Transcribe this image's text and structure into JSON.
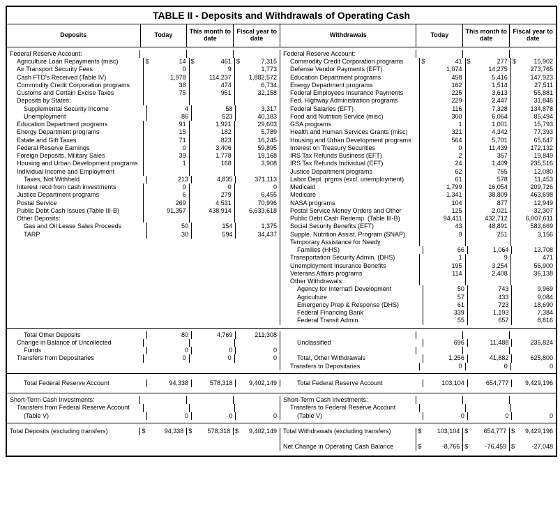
{
  "title": "TABLE II - Deposits and Withdrawals of Operating Cash",
  "cols": {
    "deposits": "Deposits",
    "withdrawals": "Withdrawals",
    "today": "Today",
    "month": "This month to date",
    "fiscal": "Fiscal year to date"
  },
  "widths": {
    "label": 196,
    "num": 65,
    "labelR": 200,
    "numR": 65
  },
  "deposits": [
    {
      "l": "Federal Reserve Account:",
      "i": 0
    },
    {
      "l": "Agriculture Loan Repayments (misc)",
      "i": 1,
      "t": "14",
      "tS": "$",
      "m": "461",
      "mS": "$",
      "f": "7,315",
      "fS": "$"
    },
    {
      "l": "Air Transport Security Fees",
      "i": 1,
      "t": "0",
      "m": "9",
      "f": "1,773"
    },
    {
      "l": "Cash FTD's Received (Table IV)",
      "i": 1,
      "t": "1,978",
      "m": "114,237",
      "f": "1,882,572"
    },
    {
      "l": "Commodity Credit Corporation programs",
      "i": 1,
      "t": "38",
      "m": "474",
      "f": "6,734"
    },
    {
      "l": "Customs and Certain Excise Taxes",
      "i": 1,
      "t": "75",
      "m": "951",
      "f": "32,158"
    },
    {
      "l": "Deposits by States:",
      "i": 1
    },
    {
      "l": "Supplemental Security Income",
      "i": 2,
      "t": "4",
      "m": "58",
      "f": "3,317"
    },
    {
      "l": "Unemployment",
      "i": 2,
      "t": "86",
      "m": "523",
      "f": "40,183"
    },
    {
      "l": "Education Department programs",
      "i": 1,
      "t": "91",
      "m": "1,921",
      "f": "29,603"
    },
    {
      "l": "Energy Department programs",
      "i": 1,
      "t": "15",
      "m": "182",
      "f": "5,789"
    },
    {
      "l": "Estate and Gift Taxes",
      "i": 1,
      "t": "71",
      "m": "823",
      "f": "16,245"
    },
    {
      "l": "Federal Reserve Earnings",
      "i": 1,
      "t": "0",
      "m": "3,406",
      "f": "59,895"
    },
    {
      "l": "Foreign Deposits, Military Sales",
      "i": 1,
      "t": "39",
      "m": "1,778",
      "f": "19,168"
    },
    {
      "l": "Housing and Urban Development programs",
      "i": 1,
      "t": "1",
      "m": "168",
      "f": "3,908"
    },
    {
      "l": "Individual Income and Employment",
      "i": 1
    },
    {
      "l": "Taxes, Not Withheld",
      "i": 2,
      "t": "213",
      "m": "4,835",
      "f": "371,113"
    },
    {
      "l": "Interest recd from cash investments",
      "i": 1,
      "t": "0",
      "m": "0",
      "f": "0"
    },
    {
      "l": "Justice Department programs",
      "i": 1,
      "t": "6",
      "m": "279",
      "f": "6,455"
    },
    {
      "l": "Postal Service",
      "i": 1,
      "t": "269",
      "m": "4,531",
      "f": "70,996"
    },
    {
      "l": "Public Debt Cash Issues (Table III-B)",
      "i": 1,
      "t": "91,357",
      "m": "438,914",
      "f": "6,633,618"
    },
    {
      "l": "Other Deposits:",
      "i": 1
    },
    {
      "l": "Gas and Oil Lease Sales Proceeds",
      "i": 2,
      "t": "50",
      "m": "154",
      "f": "1,375"
    },
    {
      "l": "TARP",
      "i": 2,
      "t": "30",
      "m": "594",
      "f": "34,437"
    }
  ],
  "withdrawals": [
    {
      "l": "Federal Reserve Account:",
      "i": 0
    },
    {
      "l": "Commodity Credit Corporation programs",
      "i": 1,
      "t": "41",
      "tS": "$",
      "m": "277",
      "mS": "$",
      "f": "15,902",
      "fS": "$"
    },
    {
      "l": "Defense Vendor Payments (EFT)",
      "i": 1,
      "t": "1,074",
      "m": "14,275",
      "f": "273,765"
    },
    {
      "l": "Education Department programs",
      "i": 1,
      "t": "458",
      "m": "5,416",
      "f": "147,923"
    },
    {
      "l": "Energy Department programs",
      "i": 1,
      "t": "162",
      "m": "1,514",
      "f": "27,511"
    },
    {
      "l": "Federal Employees Insurance Payments",
      "i": 1,
      "t": "225",
      "m": "3,613",
      "f": "55,881"
    },
    {
      "l": "Fed. Highway Administration programs",
      "i": 1,
      "t": "229",
      "m": "2,447",
      "f": "31,846"
    },
    {
      "l": "Federal Salaries (EFT)",
      "i": 1,
      "t": "116",
      "m": "7,328",
      "f": "134,878"
    },
    {
      "l": "Food and Nutrition Service (misc)",
      "i": 1,
      "t": "300",
      "m": "6,064",
      "f": "85,494"
    },
    {
      "l": "GSA programs",
      "i": 1,
      "t": "1",
      "m": "1,001",
      "f": "15,793"
    },
    {
      "l": "Health and Human Services Grants (misc)",
      "i": 1,
      "t": "321",
      "m": "4,342",
      "f": "77,393"
    },
    {
      "l": "Housing and Urban Development programs",
      "i": 1,
      "t": "564",
      "m": "5,701",
      "f": "65,647"
    },
    {
      "l": "Interest on Treasury Securities",
      "i": 1,
      "t": "0",
      "m": "11,439",
      "f": "172,132"
    },
    {
      "l": "IRS Tax Refunds Business (EFT)",
      "i": 1,
      "t": "2",
      "m": "357",
      "f": "19,849"
    },
    {
      "l": "IRS Tax Refunds Individual (EFT)",
      "i": 1,
      "t": "24",
      "m": "1,409",
      "f": "235,516"
    },
    {
      "l": "Justice Department programs",
      "i": 1,
      "t": "62",
      "m": "765",
      "f": "12,080"
    },
    {
      "l": "Labor Dept. prgms (excl. unemployment)",
      "i": 1,
      "t": "61",
      "m": "578",
      "f": "11,453"
    },
    {
      "l": "Medicaid",
      "i": 1,
      "t": "1,799",
      "m": "16,054",
      "f": "209,726"
    },
    {
      "l": "Medicare",
      "i": 1,
      "t": "1,341",
      "m": "38,809",
      "f": "463,698"
    },
    {
      "l": "NASA programs",
      "i": 1,
      "t": "104",
      "m": "877",
      "f": "12,949"
    },
    {
      "l": "Postal Service Money Orders and Other",
      "i": 1,
      "t": "125",
      "m": "2,021",
      "f": "32,307"
    },
    {
      "l": "Public Debt Cash Redemp. (Table III-B)",
      "i": 1,
      "t": "94,411",
      "m": "432,712",
      "f": "6,007,611"
    },
    {
      "l": "Social Security Benefits (EFT)",
      "i": 1,
      "t": "43",
      "m": "48,891",
      "f": "583,669"
    },
    {
      "l": "Supple. Nutrition Assist. Program (SNAP)",
      "i": 1,
      "t": "9",
      "m": "251",
      "f": "3,156"
    },
    {
      "l": "Temporary Assistance for Needy",
      "i": 1
    },
    {
      "l": "Families (HHS)",
      "i": 2,
      "t": "66",
      "m": "1,064",
      "f": "13,708"
    },
    {
      "l": "Transportation Security Admin. (DHS)",
      "i": 1,
      "t": "1",
      "m": "9",
      "f": "471"
    },
    {
      "l": "Unemployment Insurance Benefits",
      "i": 1,
      "t": "195",
      "m": "3,254",
      "f": "56,900"
    },
    {
      "l": "Veterans Affairs programs",
      "i": 1,
      "t": "114",
      "m": "2,408",
      "f": "36,138"
    },
    {
      "l": "Other Withdrawals:",
      "i": 1
    },
    {
      "l": "Agency for Internat'l Development",
      "i": 2,
      "t": "50",
      "m": "743",
      "f": "9,969"
    },
    {
      "l": "Agriculture",
      "i": 2,
      "t": "57",
      "m": "433",
      "f": "9,084"
    },
    {
      "l": "Emergency Prep & Response (DHS)",
      "i": 2,
      "t": "61",
      "m": "723",
      "f": "18,690"
    },
    {
      "l": "Federal Financing Bank",
      "i": 2,
      "t": "339",
      "m": "1,193",
      "f": "7,384"
    },
    {
      "l": "Federal Transit Admin.",
      "i": 2,
      "t": "55",
      "m": "657",
      "f": "8,816"
    }
  ],
  "section2L": [
    {
      "l": "Total Other Deposits",
      "i": 2,
      "t": "80",
      "m": "4,769",
      "f": "211,308"
    },
    {
      "l": "Change in Balance of Uncollected",
      "i": 1
    },
    {
      "l": "Funds",
      "i": 2,
      "t": "0",
      "m": "0",
      "f": "0"
    },
    {
      "l": "Transfers from Depositaries",
      "i": 1,
      "t": "0",
      "m": "0",
      "f": "0"
    }
  ],
  "section2R": [
    {
      "l": "",
      "i": 0
    },
    {
      "l": "Unclassified",
      "i": 2,
      "t": "696",
      "m": "11,488",
      "f": "235,824"
    },
    {
      "l": "",
      "i": 0
    },
    {
      "l": "Total, Other Withdrawals",
      "i": 2,
      "t": "1,256",
      "m": "41,882",
      "f": "625,800"
    },
    {
      "l": "Transfers to Depositaries",
      "i": 1,
      "t": "0",
      "m": "0",
      "f": "0"
    }
  ],
  "section3L": [
    {
      "l": "Total Federal Reserve Account",
      "i": 2,
      "t": "94,338",
      "m": "578,318",
      "f": "9,402,149"
    }
  ],
  "section3R": [
    {
      "l": "Total Federal Reserve Account",
      "i": 2,
      "t": "103,104",
      "m": "654,777",
      "f": "9,429,196"
    }
  ],
  "section4L": [
    {
      "l": "Short-Term Cash Investments:",
      "i": 0
    },
    {
      "l": "Transfers from Federal Reserve Account",
      "i": 1
    },
    {
      "l": "(Table V)",
      "i": 2,
      "t": "0",
      "m": "0",
      "f": "0"
    }
  ],
  "section4R": [
    {
      "l": "Short-Term Cash Investments:",
      "i": 0
    },
    {
      "l": "Transfers to Federal Reserve Account",
      "i": 1
    },
    {
      "l": "(Table V)",
      "i": 2,
      "t": "0",
      "m": "0",
      "f": "0"
    }
  ],
  "section5L": [
    {
      "l": "Total Deposits (excluding transfers)",
      "i": 0,
      "t": "94,338",
      "tS": "$",
      "m": "578,318",
      "mS": "$",
      "f": "9,402,149",
      "fS": "$"
    }
  ],
  "section5R": [
    {
      "l": "Total Withdrawals (excluding transfers)",
      "i": 0,
      "t": "103,104",
      "tS": "$",
      "m": "654,777",
      "mS": "$",
      "f": "9,429,196",
      "fS": "$"
    },
    {
      "l": "",
      "i": 0
    },
    {
      "l": "Net Change in Operating Cash Balance",
      "i": 0,
      "t": "-8,766",
      "tS": "$",
      "m": "-76,459",
      "mS": "$",
      "f": "-27,048",
      "fS": "$"
    }
  ]
}
